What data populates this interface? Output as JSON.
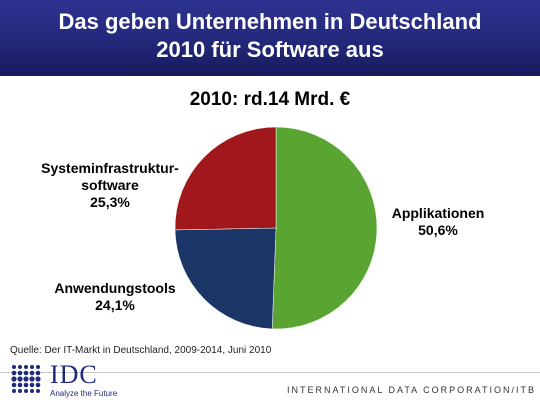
{
  "header": {
    "title_line1": "Das geben Unternehmen in Deutschland",
    "title_line2": "2010 für Software aus",
    "colors": {
      "banner": "#23287a",
      "text": "#ffffff"
    }
  },
  "chart_data": {
    "type": "pie",
    "title": "2010: rd.14 Mrd. €",
    "slices": [
      {
        "label": "Applikationen",
        "value": 50.6,
        "value_label": "50,6%",
        "color": "#5aa531"
      },
      {
        "label": "Anwendungstools",
        "value": 24.1,
        "value_label": "24,1%",
        "color": "#1c3567"
      },
      {
        "label": "Systeminfrastruktur-software",
        "label_lines": [
          "Systeminfrastruktur-",
          "software"
        ],
        "value": 25.3,
        "value_label": "25,3%",
        "color": "#a0181b"
      }
    ],
    "start": "top, clockwise"
  },
  "source_note": "Quelle: Der IT-Markt in Deutschland, 2009-2014, Juni 2010",
  "footer": {
    "logo_text": "IDC",
    "logo_tagline": "Analyze the Future",
    "corporation": "INTERNATIONAL DATA CORPORATION/ITB"
  }
}
